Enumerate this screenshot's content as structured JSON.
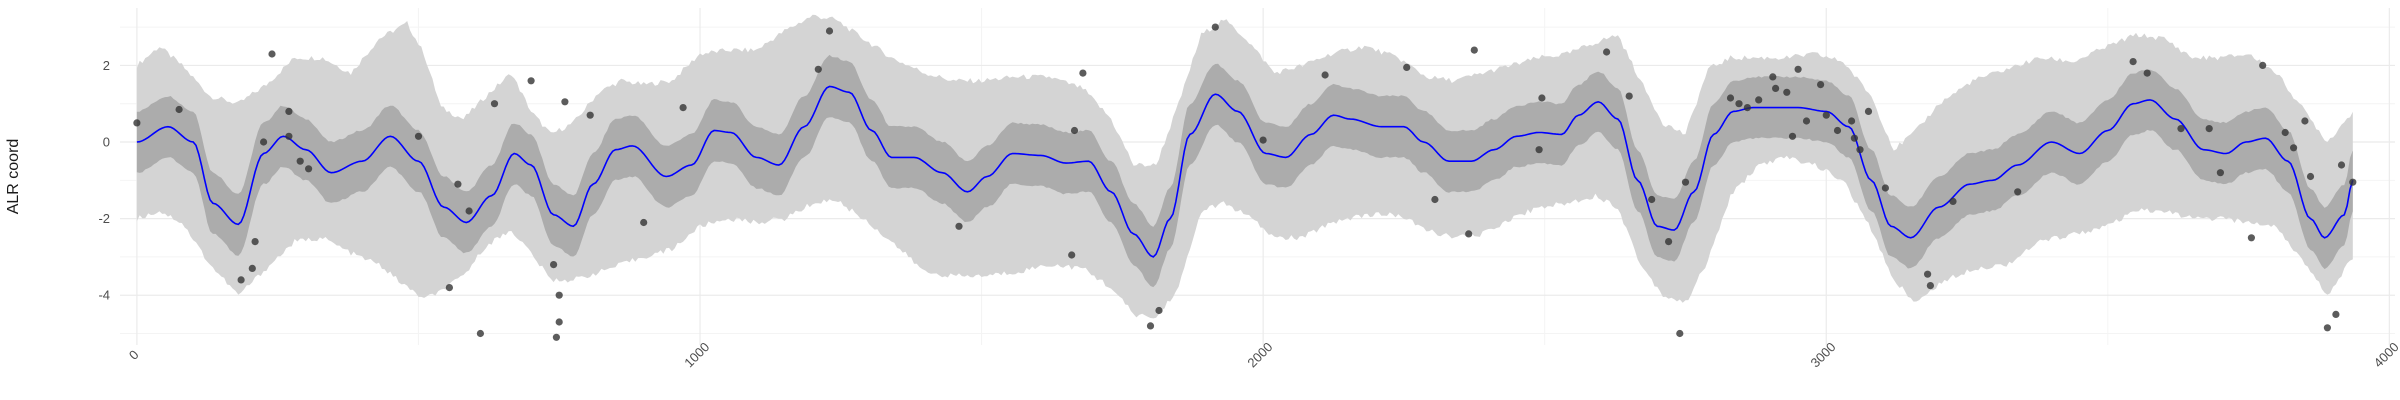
{
  "chart_data": {
    "type": "line",
    "title": "",
    "xlabel": "",
    "ylabel": "ALR coord",
    "xlim": [
      -30,
      4010
    ],
    "ylim": [
      -5.3,
      3.5
    ],
    "x_ticks": [
      0,
      1000,
      2000,
      3000,
      4000
    ],
    "x_tick_labels": [
      "0",
      "1000",
      "2000",
      "3000",
      "4000"
    ],
    "y_ticks": [
      -4,
      -2,
      0,
      2
    ],
    "y_tick_labels": [
      "-4",
      "-2",
      "0",
      "2"
    ],
    "grid": true,
    "legend": "none",
    "colors": {
      "mean_line": "#0000ff",
      "inner_band": "#acacac",
      "outer_band": "#d4d4d4",
      "points": "#333333",
      "grid_major": "#ebebeb",
      "grid_minor": "#f4f4f4"
    },
    "mean": [
      [
        0,
        0.0
      ],
      [
        55,
        0.4
      ],
      [
        100,
        0.0
      ],
      [
        135,
        -1.6
      ],
      [
        180,
        -2.15
      ],
      [
        225,
        -0.3
      ],
      [
        260,
        0.15
      ],
      [
        300,
        -0.2
      ],
      [
        345,
        -0.8
      ],
      [
        400,
        -0.5
      ],
      [
        450,
        0.15
      ],
      [
        500,
        -0.5
      ],
      [
        545,
        -1.7
      ],
      [
        585,
        -2.1
      ],
      [
        630,
        -1.4
      ],
      [
        670,
        -0.3
      ],
      [
        700,
        -0.6
      ],
      [
        740,
        -1.9
      ],
      [
        775,
        -2.2
      ],
      [
        810,
        -1.1
      ],
      [
        850,
        -0.2
      ],
      [
        880,
        -0.1
      ],
      [
        940,
        -0.9
      ],
      [
        985,
        -0.6
      ],
      [
        1025,
        0.3
      ],
      [
        1055,
        0.25
      ],
      [
        1100,
        -0.4
      ],
      [
        1140,
        -0.6
      ],
      [
        1185,
        0.4
      ],
      [
        1230,
        1.45
      ],
      [
        1265,
        1.3
      ],
      [
        1305,
        0.3
      ],
      [
        1340,
        -0.4
      ],
      [
        1380,
        -0.4
      ],
      [
        1430,
        -0.8
      ],
      [
        1475,
        -1.3
      ],
      [
        1510,
        -0.9
      ],
      [
        1555,
        -0.3
      ],
      [
        1605,
        -0.35
      ],
      [
        1650,
        -0.55
      ],
      [
        1690,
        -0.5
      ],
      [
        1730,
        -1.3
      ],
      [
        1770,
        -2.4
      ],
      [
        1805,
        -3.0
      ],
      [
        1835,
        -2.0
      ],
      [
        1870,
        0.2
      ],
      [
        1915,
        1.25
      ],
      [
        1955,
        0.8
      ],
      [
        2005,
        -0.3
      ],
      [
        2040,
        -0.4
      ],
      [
        2085,
        0.2
      ],
      [
        2125,
        0.7
      ],
      [
        2155,
        0.6
      ],
      [
        2210,
        0.4
      ],
      [
        2250,
        0.4
      ],
      [
        2285,
        0.0
      ],
      [
        2330,
        -0.5
      ],
      [
        2370,
        -0.5
      ],
      [
        2410,
        -0.2
      ],
      [
        2450,
        0.15
      ],
      [
        2490,
        0.25
      ],
      [
        2530,
        0.2
      ],
      [
        2560,
        0.7
      ],
      [
        2595,
        1.05
      ],
      [
        2630,
        0.6
      ],
      [
        2665,
        -1.0
      ],
      [
        2700,
        -2.2
      ],
      [
        2730,
        -2.3
      ],
      [
        2765,
        -1.3
      ],
      [
        2800,
        0.2
      ],
      [
        2835,
        0.8
      ],
      [
        2870,
        0.9
      ],
      [
        2905,
        0.9
      ],
      [
        2950,
        0.9
      ],
      [
        3000,
        0.8
      ],
      [
        3040,
        0.4
      ],
      [
        3080,
        -1.0
      ],
      [
        3115,
        -2.2
      ],
      [
        3150,
        -2.5
      ],
      [
        3200,
        -1.7
      ],
      [
        3255,
        -1.1
      ],
      [
        3295,
        -1.0
      ],
      [
        3340,
        -0.6
      ],
      [
        3400,
        0.0
      ],
      [
        3450,
        -0.3
      ],
      [
        3500,
        0.3
      ],
      [
        3545,
        1.0
      ],
      [
        3575,
        1.1
      ],
      [
        3620,
        0.6
      ],
      [
        3670,
        -0.2
      ],
      [
        3710,
        -0.3
      ],
      [
        3745,
        0.0
      ],
      [
        3780,
        0.1
      ],
      [
        3820,
        -0.5
      ],
      [
        3860,
        -2.0
      ],
      [
        3885,
        -2.5
      ],
      [
        3920,
        -1.9
      ],
      [
        3935,
        -1.0
      ]
    ],
    "inner_band_halfwidth": 0.8,
    "outer_band": {
      "x": [
        0,
        40,
        80,
        130,
        180,
        230,
        280,
        330,
        380,
        430,
        480,
        510,
        540,
        580,
        620,
        665,
        700,
        735,
        775,
        820,
        860,
        900,
        950,
        1000,
        1050,
        1100,
        1150,
        1200,
        1240,
        1290,
        1340,
        1400,
        1450,
        1500,
        1560,
        1620,
        1680,
        1730,
        1770,
        1810,
        1850,
        1890,
        1930,
        1970,
        2020,
        2070,
        2120,
        2180,
        2240,
        2290,
        2340,
        2390,
        2440,
        2490,
        2540,
        2590,
        2630,
        2670,
        2710,
        2750,
        2790,
        2830,
        2880,
        2930,
        2980,
        3030,
        3080,
        3120,
        3160,
        3200,
        3260,
        3320,
        3380,
        3440,
        3500,
        3550,
        3600,
        3650,
        3700,
        3750,
        3800,
        3850,
        3890,
        3935
      ],
      "upper": [
        2.0,
        2.5,
        2.0,
        1.2,
        1.0,
        1.5,
        2.2,
        2.2,
        1.8,
        2.7,
        3.1,
        2.3,
        0.9,
        0.6,
        1.2,
        1.8,
        0.8,
        0.2,
        0.5,
        1.3,
        1.6,
        1.5,
        1.6,
        2.3,
        2.4,
        2.4,
        2.9,
        3.3,
        3.2,
        2.7,
        2.2,
        1.8,
        1.6,
        1.6,
        1.7,
        1.7,
        1.4,
        0.6,
        -0.6,
        -0.6,
        1.0,
        2.8,
        3.2,
        2.7,
        1.8,
        2.0,
        2.3,
        2.5,
        2.2,
        1.7,
        1.6,
        1.8,
        2.0,
        2.2,
        2.3,
        2.6,
        2.8,
        1.6,
        0.5,
        0.2,
        1.9,
        2.2,
        2.2,
        2.2,
        2.3,
        2.1,
        1.2,
        -0.2,
        0.3,
        1.0,
        1.6,
        1.9,
        2.2,
        2.1,
        2.5,
        2.8,
        2.7,
        2.2,
        2.2,
        2.3,
        1.8,
        0.8,
        0.0,
        0.8
      ],
      "lower": [
        -2.0,
        -1.8,
        -2.1,
        -3.2,
        -4.0,
        -3.3,
        -2.6,
        -2.5,
        -2.9,
        -3.2,
        -3.8,
        -4.1,
        -3.9,
        -3.5,
        -2.7,
        -2.3,
        -2.9,
        -3.6,
        -3.6,
        -3.4,
        -3.2,
        -3.0,
        -2.8,
        -2.2,
        -2.0,
        -2.1,
        -2.0,
        -1.6,
        -1.5,
        -2.0,
        -2.6,
        -3.4,
        -3.5,
        -3.5,
        -3.4,
        -3.2,
        -3.3,
        -3.8,
        -4.5,
        -4.6,
        -3.8,
        -1.8,
        -1.6,
        -1.9,
        -2.5,
        -2.5,
        -2.1,
        -1.9,
        -1.9,
        -2.3,
        -2.5,
        -2.4,
        -2.0,
        -1.7,
        -1.6,
        -1.4,
        -1.7,
        -3.2,
        -4.0,
        -4.2,
        -3.1,
        -1.4,
        -0.6,
        -0.4,
        -0.6,
        -1.0,
        -2.3,
        -3.6,
        -4.2,
        -3.7,
        -3.3,
        -3.2,
        -2.6,
        -2.4,
        -2.2,
        -1.8,
        -1.8,
        -2.0,
        -2.0,
        -2.1,
        -2.2,
        -3.2,
        -4.0,
        -3.0
      ]
    },
    "points": [
      [
        0,
        0.5
      ],
      [
        75,
        0.85
      ],
      [
        185,
        -3.6
      ],
      [
        205,
        -3.3
      ],
      [
        210,
        -2.6
      ],
      [
        225,
        0.0
      ],
      [
        240,
        2.3
      ],
      [
        270,
        0.15
      ],
      [
        270,
        0.8
      ],
      [
        290,
        -0.5
      ],
      [
        305,
        -0.7
      ],
      [
        500,
        0.15
      ],
      [
        555,
        -3.8
      ],
      [
        570,
        -1.1
      ],
      [
        590,
        -1.8
      ],
      [
        610,
        -5.0
      ],
      [
        635,
        1.0
      ],
      [
        700,
        1.6
      ],
      [
        740,
        -3.2
      ],
      [
        745,
        -5.1
      ],
      [
        750,
        -4.0
      ],
      [
        750,
        -4.7
      ],
      [
        760,
        1.05
      ],
      [
        805,
        0.7
      ],
      [
        900,
        -2.1
      ],
      [
        970,
        0.9
      ],
      [
        1210,
        1.9
      ],
      [
        1230,
        2.9
      ],
      [
        1460,
        -2.2
      ],
      [
        1660,
        -2.95
      ],
      [
        1665,
        0.3
      ],
      [
        1680,
        1.8
      ],
      [
        1800,
        -4.8
      ],
      [
        1815,
        -4.4
      ],
      [
        1915,
        3.0
      ],
      [
        2000,
        0.05
      ],
      [
        2110,
        1.75
      ],
      [
        2255,
        1.95
      ],
      [
        2305,
        -1.5
      ],
      [
        2365,
        -2.4
      ],
      [
        2375,
        2.4
      ],
      [
        2490,
        -0.2
      ],
      [
        2495,
        1.15
      ],
      [
        2610,
        2.35
      ],
      [
        2650,
        1.2
      ],
      [
        2690,
        -1.5
      ],
      [
        2720,
        -2.6
      ],
      [
        2740,
        -5.0
      ],
      [
        2750,
        -1.05
      ],
      [
        2830,
        1.15
      ],
      [
        2845,
        1.0
      ],
      [
        2860,
        0.9
      ],
      [
        2880,
        1.1
      ],
      [
        2905,
        1.7
      ],
      [
        2910,
        1.4
      ],
      [
        2930,
        1.3
      ],
      [
        2940,
        0.15
      ],
      [
        2950,
        1.9
      ],
      [
        2965,
        0.55
      ],
      [
        2990,
        1.5
      ],
      [
        3000,
        0.7
      ],
      [
        3020,
        0.3
      ],
      [
        3045,
        0.55
      ],
      [
        3050,
        0.1
      ],
      [
        3060,
        -0.2
      ],
      [
        3075,
        0.8
      ],
      [
        3105,
        -1.2
      ],
      [
        3180,
        -3.45
      ],
      [
        3185,
        -3.75
      ],
      [
        3225,
        -1.55
      ],
      [
        3340,
        -1.3
      ],
      [
        3545,
        2.1
      ],
      [
        3570,
        1.8
      ],
      [
        3630,
        0.35
      ],
      [
        3680,
        0.35
      ],
      [
        3700,
        -0.8
      ],
      [
        3755,
        -2.5
      ],
      [
        3775,
        2.0
      ],
      [
        3815,
        0.25
      ],
      [
        3830,
        -0.15
      ],
      [
        3850,
        0.55
      ],
      [
        3860,
        -0.9
      ],
      [
        3890,
        -4.85
      ],
      [
        3905,
        -4.5
      ],
      [
        3915,
        -0.6
      ],
      [
        3935,
        -1.05
      ]
    ]
  }
}
